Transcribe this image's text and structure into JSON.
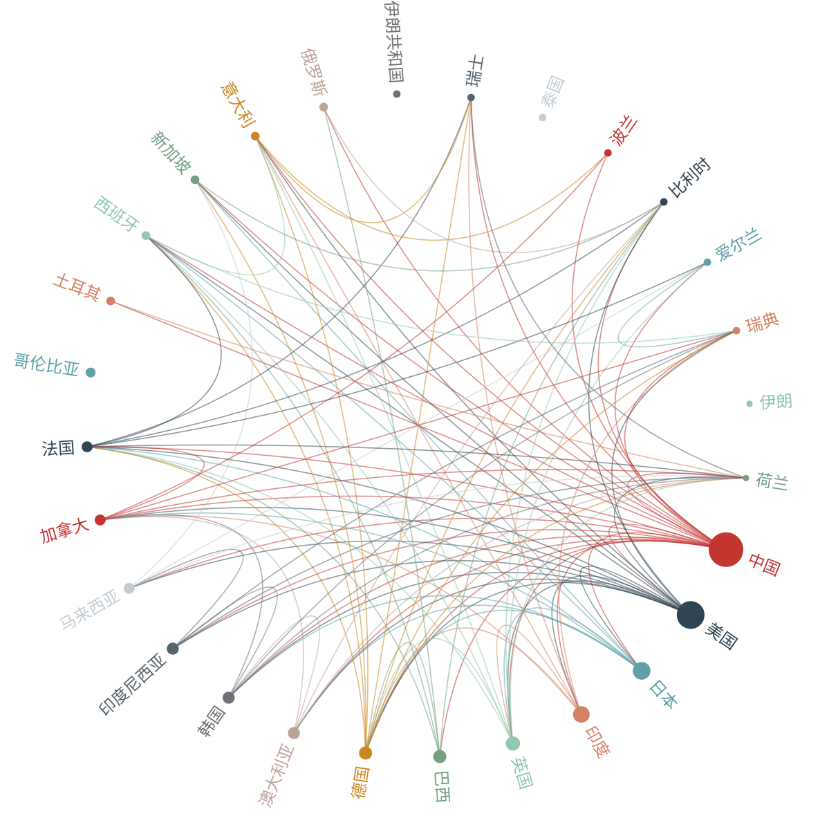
{
  "colors": {
    "red": "#c23531",
    "navy": "#2f4554",
    "teal": "#61a0a8",
    "orange": "#d48265",
    "mint": "#91c7ae",
    "olive": "#749f83",
    "gold": "#ca8622",
    "tan": "#bda29a",
    "gray": "#6e7074",
    "slate": "#546570",
    "silver": "#c4ccd3"
  },
  "chart_data": {
    "type": "graph-circular",
    "nodes": [
      {
        "id": "china",
        "name": "中国",
        "color": "red",
        "weight": 27
      },
      {
        "id": "usa",
        "name": "美国",
        "color": "navy",
        "weight": 21
      },
      {
        "id": "japan",
        "name": "日本",
        "color": "teal",
        "weight": 12
      },
      {
        "id": "india",
        "name": "印度",
        "color": "orange",
        "weight": 11
      },
      {
        "id": "uk",
        "name": "英国",
        "color": "mint",
        "weight": 9
      },
      {
        "id": "brazil",
        "name": "巴西",
        "color": "olive",
        "weight": 8
      },
      {
        "id": "germany",
        "name": "德国",
        "color": "gold",
        "weight": 8
      },
      {
        "id": "australia",
        "name": "澳大利亚",
        "color": "tan",
        "weight": 7
      },
      {
        "id": "korea",
        "name": "韩国",
        "color": "gray",
        "weight": 7
      },
      {
        "id": "indonesia",
        "name": "印度尼西亚",
        "color": "slate",
        "weight": 7
      },
      {
        "id": "malaysia",
        "name": "马来西亚",
        "color": "silver",
        "weight": 6
      },
      {
        "id": "canada",
        "name": "加拿大",
        "color": "red",
        "weight": 6
      },
      {
        "id": "france",
        "name": "法国",
        "color": "navy",
        "weight": 6
      },
      {
        "id": "colombia",
        "name": "哥伦比亚",
        "color": "teal",
        "weight": 5
      },
      {
        "id": "turkey",
        "name": "土耳其",
        "color": "orange",
        "weight": 4
      },
      {
        "id": "spain",
        "name": "西班牙",
        "color": "mint",
        "weight": 4
      },
      {
        "id": "singapore",
        "name": "新加坡",
        "color": "olive",
        "weight": 4
      },
      {
        "id": "italy",
        "name": "意大利",
        "color": "gold",
        "weight": 4
      },
      {
        "id": "russia",
        "name": "俄罗斯",
        "color": "tan",
        "weight": 4
      },
      {
        "id": "iran_rep",
        "name": "伊朗共和国",
        "color": "gray",
        "weight": 3
      },
      {
        "id": "swiss",
        "name": "瑞士",
        "color": "slate",
        "weight": 3
      },
      {
        "id": "thailand",
        "name": "泰国",
        "color": "silver",
        "weight": 3
      },
      {
        "id": "poland",
        "name": "波兰",
        "color": "red",
        "weight": 3
      },
      {
        "id": "belgium",
        "name": "比利时",
        "color": "navy",
        "weight": 3
      },
      {
        "id": "ireland",
        "name": "爱尔兰",
        "color": "teal",
        "weight": 3
      },
      {
        "id": "sweden",
        "name": "瑞典",
        "color": "orange",
        "weight": 3
      },
      {
        "id": "iran",
        "name": "伊朗",
        "color": "mint",
        "weight": 2
      },
      {
        "id": "netherlands",
        "name": "荷兰",
        "color": "olive",
        "weight": 2
      }
    ],
    "edges": [
      [
        "china",
        "usa"
      ],
      [
        "china",
        "japan"
      ],
      [
        "china",
        "india"
      ],
      [
        "china",
        "uk"
      ],
      [
        "china",
        "brazil"
      ],
      [
        "china",
        "germany"
      ],
      [
        "china",
        "australia"
      ],
      [
        "china",
        "korea"
      ],
      [
        "china",
        "indonesia"
      ],
      [
        "china",
        "malaysia"
      ],
      [
        "china",
        "canada"
      ],
      [
        "china",
        "france"
      ],
      [
        "china",
        "turkey"
      ],
      [
        "china",
        "spain"
      ],
      [
        "china",
        "singapore"
      ],
      [
        "china",
        "italy"
      ],
      [
        "china",
        "russia"
      ],
      [
        "china",
        "swiss"
      ],
      [
        "china",
        "poland"
      ],
      [
        "china",
        "belgium"
      ],
      [
        "china",
        "ireland"
      ],
      [
        "china",
        "sweden"
      ],
      [
        "china",
        "netherlands"
      ],
      [
        "usa",
        "japan"
      ],
      [
        "usa",
        "india"
      ],
      [
        "usa",
        "uk"
      ],
      [
        "usa",
        "germany"
      ],
      [
        "usa",
        "australia"
      ],
      [
        "usa",
        "korea"
      ],
      [
        "usa",
        "indonesia"
      ],
      [
        "usa",
        "malaysia"
      ],
      [
        "usa",
        "canada"
      ],
      [
        "usa",
        "france"
      ],
      [
        "usa",
        "spain"
      ],
      [
        "usa",
        "singapore"
      ],
      [
        "usa",
        "italy"
      ],
      [
        "usa",
        "belgium"
      ],
      [
        "usa",
        "netherlands"
      ],
      [
        "usa",
        "sweden"
      ],
      [
        "japan",
        "uk"
      ],
      [
        "japan",
        "germany"
      ],
      [
        "japan",
        "korea"
      ],
      [
        "japan",
        "france"
      ],
      [
        "japan",
        "singapore"
      ],
      [
        "japan",
        "spain"
      ],
      [
        "japan",
        "australia"
      ],
      [
        "japan",
        "canada"
      ],
      [
        "india",
        "uk"
      ],
      [
        "india",
        "germany"
      ],
      [
        "india",
        "canada"
      ],
      [
        "india",
        "italy"
      ],
      [
        "india",
        "swiss"
      ],
      [
        "india",
        "sweden"
      ],
      [
        "uk",
        "germany"
      ],
      [
        "uk",
        "france"
      ],
      [
        "uk",
        "italy"
      ],
      [
        "uk",
        "spain"
      ],
      [
        "uk",
        "belgium"
      ],
      [
        "uk",
        "ireland"
      ],
      [
        "uk",
        "netherlands"
      ],
      [
        "brazil",
        "germany"
      ],
      [
        "brazil",
        "spain"
      ],
      [
        "brazil",
        "france"
      ],
      [
        "brazil",
        "belgium"
      ],
      [
        "brazil",
        "russia"
      ],
      [
        "germany",
        "france"
      ],
      [
        "germany",
        "italy"
      ],
      [
        "germany",
        "spain"
      ],
      [
        "germany",
        "swiss"
      ],
      [
        "germany",
        "netherlands"
      ],
      [
        "germany",
        "sweden"
      ],
      [
        "germany",
        "belgium"
      ],
      [
        "germany",
        "singapore"
      ],
      [
        "australia",
        "korea"
      ],
      [
        "australia",
        "canada"
      ],
      [
        "australia",
        "netherlands"
      ],
      [
        "australia",
        "belgium"
      ],
      [
        "korea",
        "indonesia"
      ],
      [
        "korea",
        "netherlands"
      ],
      [
        "korea",
        "sweden"
      ],
      [
        "korea",
        "canada"
      ],
      [
        "indonesia",
        "malaysia"
      ],
      [
        "indonesia",
        "netherlands"
      ],
      [
        "indonesia",
        "sweden"
      ],
      [
        "malaysia",
        "singapore"
      ],
      [
        "malaysia",
        "netherlands"
      ],
      [
        "malaysia",
        "ireland"
      ],
      [
        "canada",
        "france"
      ],
      [
        "canada",
        "poland"
      ],
      [
        "canada",
        "sweden"
      ],
      [
        "canada",
        "netherlands"
      ],
      [
        "france",
        "spain"
      ],
      [
        "france",
        "swiss"
      ],
      [
        "france",
        "belgium"
      ],
      [
        "france",
        "netherlands"
      ],
      [
        "france",
        "ireland"
      ],
      [
        "turkey",
        "netherlands"
      ],
      [
        "spain",
        "italy"
      ],
      [
        "spain",
        "sweden"
      ],
      [
        "singapore",
        "belgium"
      ],
      [
        "italy",
        "swiss"
      ],
      [
        "italy",
        "poland"
      ],
      [
        "russia",
        "belgium"
      ],
      [
        "swiss",
        "netherlands"
      ],
      [
        "ireland",
        "sweden"
      ]
    ]
  }
}
